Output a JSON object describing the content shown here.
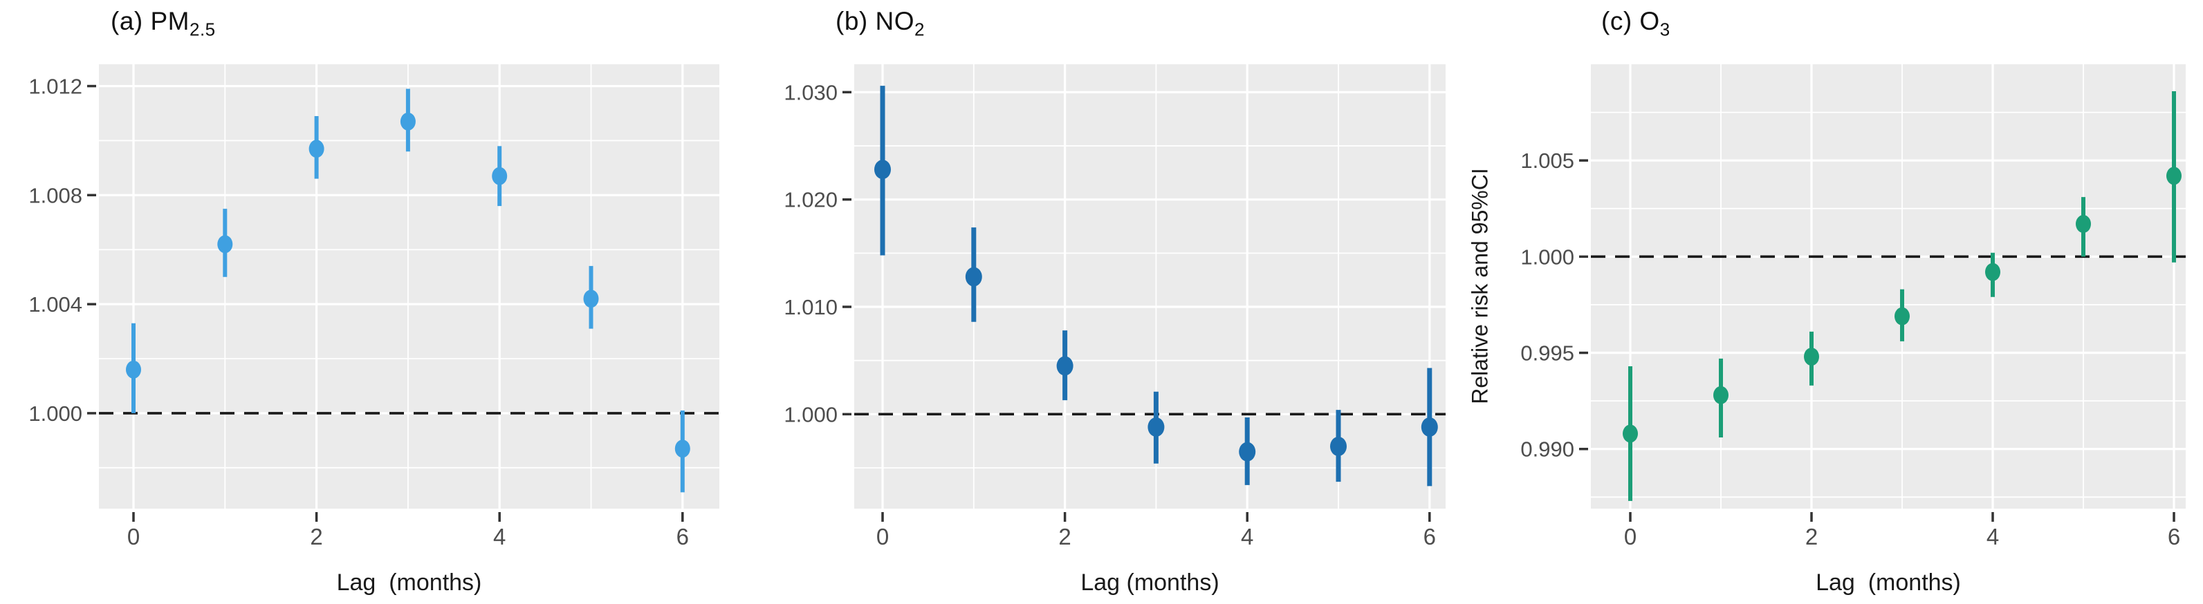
{
  "figure": {
    "background": "#FFFFFF",
    "panel_background": "#EBEBEB",
    "grid_color": "#FFFFFF",
    "axis_text_color": "#4D4D4D",
    "tick_mark_color": "#333333",
    "reference_line": {
      "value": 1.0,
      "style": "dashed",
      "color": "#1A1A1A"
    }
  },
  "chart_data": [
    {
      "type": "scatter",
      "panel": "a",
      "title_main": "(a) PM",
      "title_sub": "2.5",
      "xlabel": "Lag  (months)",
      "ylabel": null,
      "series_name": "Relative risk and 95%CI",
      "color": "#3FA0E1",
      "x": [
        0,
        1,
        2,
        3,
        4,
        5,
        6
      ],
      "xticks": [
        0,
        2,
        4,
        6
      ],
      "xtick_labels": [
        "0",
        "2",
        "4",
        "6"
      ],
      "yticks": [
        1.0,
        1.004,
        1.008,
        1.012
      ],
      "ytick_labels": [
        "1.000",
        "1.004",
        "1.008",
        "1.012"
      ],
      "yticks_minor": [
        0.998,
        1.002,
        1.006,
        1.01
      ],
      "ylim": [
        0.9965,
        1.0128
      ],
      "rr": [
        1.0016,
        1.0062,
        1.0097,
        1.0107,
        1.0087,
        1.0042,
        0.9987
      ],
      "ci_low": [
        1.0,
        1.005,
        1.0086,
        1.0096,
        1.0076,
        1.0031,
        0.9971
      ],
      "ci_high": [
        1.0033,
        1.0075,
        1.0109,
        1.0119,
        1.0098,
        1.0054,
        1.0001
      ]
    },
    {
      "type": "scatter",
      "panel": "b",
      "title_main": "(b) NO",
      "title_sub": "2",
      "xlabel": "Lag (months)",
      "ylabel": null,
      "series_name": "Relative risk and 95%CI",
      "color": "#1D6FB0",
      "x": [
        0,
        1,
        2,
        3,
        4,
        5,
        6
      ],
      "xticks": [
        0,
        2,
        4,
        6
      ],
      "xtick_labels": [
        "0",
        "2",
        "4",
        "6"
      ],
      "yticks": [
        1.0,
        1.01,
        1.02,
        1.03
      ],
      "ytick_labels": [
        "1.000",
        "1.010",
        "1.020",
        "1.030"
      ],
      "yticks_minor": [
        0.995,
        1.005,
        1.015,
        1.025
      ],
      "ylim": [
        0.9912,
        1.0326
      ],
      "rr": [
        1.0228,
        1.0128,
        1.0045,
        0.9988,
        0.9965,
        0.997,
        0.9988
      ],
      "ci_low": [
        1.0148,
        1.0086,
        1.0013,
        0.9954,
        0.9934,
        0.9937,
        0.9933
      ],
      "ci_high": [
        1.0306,
        1.0174,
        1.0078,
        1.0021,
        0.9997,
        1.0004,
        1.0043
      ]
    },
    {
      "type": "scatter",
      "panel": "c",
      "title_main": "(c) O",
      "title_sub": "3",
      "xlabel": "Lag  (months)",
      "ylabel": "Relative risk and 95%CI",
      "series_name": "Relative risk and 95%CI",
      "color": "#1B9E77",
      "x": [
        0,
        1,
        2,
        3,
        4,
        5,
        6
      ],
      "xticks": [
        0,
        2,
        4,
        6
      ],
      "xtick_labels": [
        "0",
        "2",
        "4",
        "6"
      ],
      "yticks": [
        0.99,
        0.995,
        1.0,
        1.005
      ],
      "ytick_labels": [
        "0.990",
        "0.995",
        "1.000",
        "1.005"
      ],
      "yticks_minor": [
        0.9875,
        0.9925,
        0.9975,
        1.0025,
        1.0075
      ],
      "ylim": [
        0.9869,
        1.01
      ],
      "rr": [
        0.9908,
        0.9928,
        0.9948,
        0.9969,
        0.9992,
        1.0017,
        1.0042
      ],
      "ci_low": [
        0.9873,
        0.9906,
        0.9933,
        0.9956,
        0.9979,
        1.0,
        0.9997
      ],
      "ci_high": [
        0.9943,
        0.9947,
        0.9961,
        0.9983,
        1.0002,
        1.0031,
        1.0086
      ]
    }
  ]
}
